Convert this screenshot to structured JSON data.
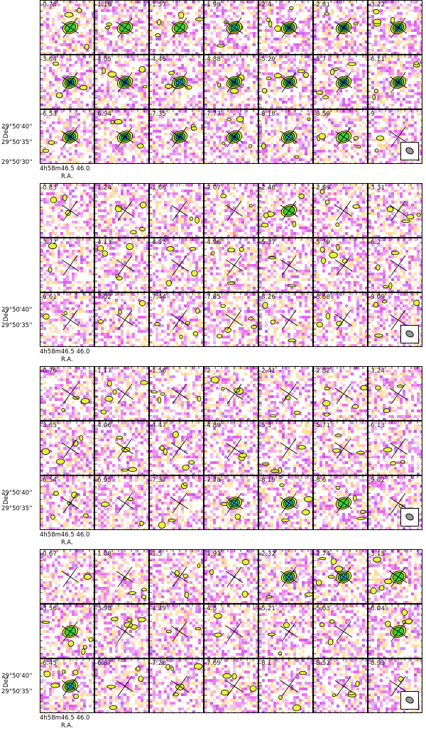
{
  "panels": [
    {
      "velocities": [
        "0.75",
        "1.16",
        "1.57",
        "1.98",
        "2.4",
        "2.81",
        "3.22",
        "3.64",
        "4.05",
        "4.46",
        "4.88",
        "5.29",
        "5.7",
        "6.11",
        "6.53",
        "6.94",
        "7.35",
        "7.77",
        "8.18",
        "8.59",
        "9"
      ],
      "emission": [
        1,
        1,
        1,
        2,
        3,
        3,
        3,
        3,
        3,
        2,
        3,
        3,
        3,
        3,
        3,
        3,
        3,
        3,
        2,
        1,
        0
      ]
    },
    {
      "velocities": [
        "0.83",
        "1.24",
        "1.66",
        "2.07",
        "2.48",
        "2.89",
        "3.31",
        "3.72",
        "4.13",
        "4.55",
        "4.96",
        "5.37",
        "5.79",
        "6.2",
        "6.61",
        "7.02",
        "7.44",
        "7.85",
        "8.26",
        "8.68",
        "9.09"
      ],
      "emission": [
        0,
        0,
        0,
        0,
        1,
        0,
        0,
        0,
        0,
        0,
        0,
        0,
        0,
        0,
        0,
        0,
        0,
        0,
        0,
        0,
        0
      ]
    },
    {
      "velocities": [
        "0.76",
        "1.17",
        "1.58",
        "2",
        "2.41",
        "2.82",
        "3.24",
        "3.65",
        "4.06",
        "4.47",
        "4.89",
        "5.3",
        "5.71",
        "6.13",
        "6.54",
        "6.95",
        "7.37",
        "7.78",
        "8.19",
        "8.6",
        "9.02"
      ],
      "emission": [
        0,
        0,
        0,
        0,
        0,
        0,
        0,
        0,
        0,
        0,
        0,
        0,
        0,
        0,
        0,
        0,
        0,
        2,
        2,
        1,
        0
      ]
    },
    {
      "velocities": [
        "0.67",
        "1.08",
        "1.5",
        "1.91",
        "2.32",
        "2.74",
        "3.15",
        "3.56",
        "3.98",
        "4.39",
        "4.8",
        "5.21",
        "5.63",
        "6.04",
        "6.45",
        "6.87",
        "7.28",
        "7.69",
        "8.1",
        "8.52",
        "8.93"
      ],
      "emission": [
        0,
        0,
        0,
        0,
        2,
        2,
        1,
        1,
        0,
        0,
        0,
        0,
        0,
        1,
        2,
        0,
        0,
        0,
        0,
        0,
        0
      ]
    }
  ],
  "axes": {
    "dec_ticks": [
      "29°50'40''",
      "29°50'35''",
      "29°50'30''"
    ],
    "dec_label": "Dec",
    "ra_tick": "4h58m46.5 46.0",
    "ra_label": "R.A."
  },
  "colors": {
    "negative": "#e23be8",
    "positive": "#ffcf7a",
    "low": "#e8f23a",
    "mid": "#3bd13b",
    "high": "#2aa6c6",
    "peak": "#1c3db0"
  }
}
